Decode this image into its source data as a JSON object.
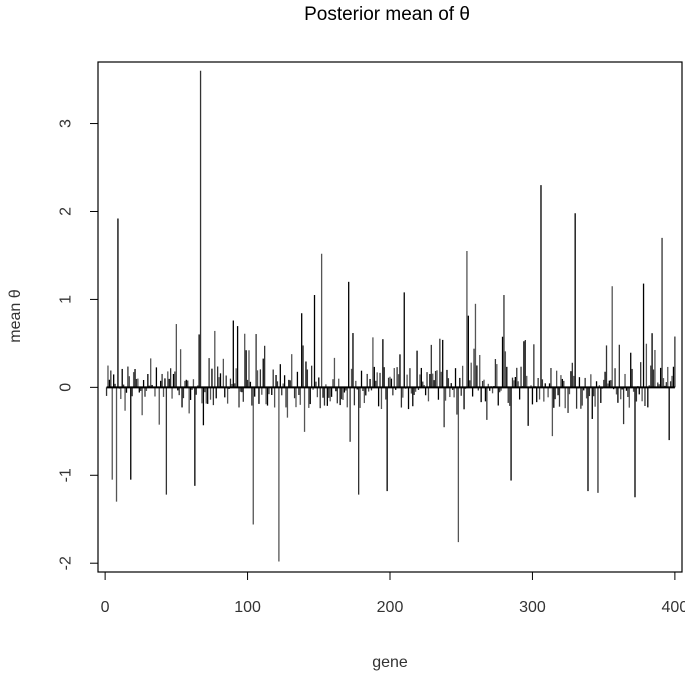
{
  "chart_data": {
    "type": "bar",
    "title": "Posterior mean of θ",
    "xlabel": "gene",
    "ylabel": "mean θ",
    "xlim": [
      -5,
      405
    ],
    "ylim": [
      -2.1,
      3.7
    ],
    "x_ticks": [
      0,
      100,
      200,
      300,
      400
    ],
    "y_ticks": [
      -2,
      -1,
      0,
      1,
      2,
      3
    ],
    "x_tick_labels": [
      "0",
      "100",
      "200",
      "300",
      "400"
    ],
    "y_tick_labels": [
      "-2",
      "-1",
      "0",
      "1",
      "2",
      "3"
    ],
    "grid": false,
    "legend": "none",
    "bar_color": "#000000",
    "n_genes": 400,
    "peaks": [
      {
        "x": 67,
        "y": 3.6
      },
      {
        "x": 9,
        "y": 1.92
      },
      {
        "x": 152,
        "y": 1.52
      },
      {
        "x": 254,
        "y": 1.55
      },
      {
        "x": 306,
        "y": 2.3
      },
      {
        "x": 330,
        "y": 1.98
      },
      {
        "x": 391,
        "y": 1.7
      },
      {
        "x": 171,
        "y": 1.2
      },
      {
        "x": 356,
        "y": 1.15
      },
      {
        "x": 378,
        "y": 1.18
      },
      {
        "x": 210,
        "y": 1.08
      },
      {
        "x": 280,
        "y": 1.05
      },
      {
        "x": 147,
        "y": 1.05
      },
      {
        "x": 260,
        "y": 0.95
      },
      {
        "x": 50,
        "y": 0.72
      },
      {
        "x": 90,
        "y": 0.76
      },
      {
        "x": 8,
        "y": -1.3
      },
      {
        "x": 5,
        "y": -1.05
      },
      {
        "x": 18,
        "y": -1.05
      },
      {
        "x": 43,
        "y": -1.22
      },
      {
        "x": 63,
        "y": -1.12
      },
      {
        "x": 104,
        "y": -1.56
      },
      {
        "x": 122,
        "y": -1.98
      },
      {
        "x": 178,
        "y": -1.22
      },
      {
        "x": 198,
        "y": -1.18
      },
      {
        "x": 248,
        "y": -1.76
      },
      {
        "x": 285,
        "y": -1.06
      },
      {
        "x": 339,
        "y": -1.18
      },
      {
        "x": 346,
        "y": -1.2
      },
      {
        "x": 372,
        "y": -1.25
      },
      {
        "x": 396,
        "y": -0.6
      }
    ]
  }
}
